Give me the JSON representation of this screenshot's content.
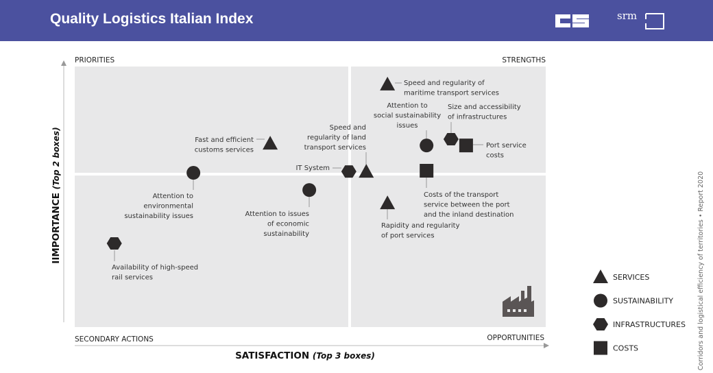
{
  "header": {
    "title": "Quality Logistics Italian Index",
    "logos": [
      "CS",
      "srm"
    ],
    "background_color": "#4b519f"
  },
  "side_note": "Corridors and logistical efficiency of territories • Report 2020",
  "chart_data": {
    "type": "scatter",
    "subtype": "quadrant",
    "xlabel_main": "SATISFACTION",
    "xlabel_sub": "(Top 3 boxes)",
    "ylabel_main": "IIMPORTANCE",
    "ylabel_sub": "(Top 2 boxes)",
    "xlim": [
      0,
      100
    ],
    "ylim": [
      0,
      100
    ],
    "quadrants": {
      "top_left": "PRIORITIES",
      "top_right": "STRENGTHS",
      "bottom_left": "SECONDARY ACTIONS",
      "bottom_right": "OPPORTUNITIES"
    },
    "quadrant_color": "#e8e8e9",
    "marker_color": "#2d2a2a",
    "legend": [
      {
        "category": "services",
        "label": "SERVICES",
        "shape": "triangle"
      },
      {
        "category": "sustainability",
        "label": "SUSTAINABILITY",
        "shape": "circle"
      },
      {
        "category": "infrastructures",
        "label": "INFRASTRUCTURES",
        "shape": "hexagon"
      },
      {
        "category": "costs",
        "label": "COSTS",
        "shape": "square"
      }
    ],
    "legend_position": "right",
    "points": [
      {
        "label": [
          "Speed and regularity of",
          "maritime transport services"
        ],
        "category": "services",
        "x": 66.4,
        "y": 93.2
      },
      {
        "label": [
          "Attention to",
          "social sustainability",
          "issues"
        ],
        "category": "sustainability",
        "x": 74.7,
        "y": 69.7
      },
      {
        "label": [
          "Size and accessibility",
          "of infrastructures"
        ],
        "category": "infrastructures",
        "x": 79.9,
        "y": 72.1
      },
      {
        "label": [
          "Port service",
          "costs"
        ],
        "category": "costs",
        "x": 83.1,
        "y": 69.7
      },
      {
        "label": [
          "Costs of the transport",
          "service between the port",
          "and the inland destination"
        ],
        "category": "costs",
        "x": 74.7,
        "y": 60.0
      },
      {
        "label": [
          "Rapidity and regularity",
          "of port services"
        ],
        "category": "services",
        "x": 66.4,
        "y": 47.6
      },
      {
        "label": [
          "Speed and",
          "regularity of land",
          "transport services"
        ],
        "category": "services",
        "x": 61.9,
        "y": 59.7
      },
      {
        "label": [
          "IT System"
        ],
        "category": "infrastructures",
        "x": 58.2,
        "y": 59.7
      },
      {
        "label": [
          "Attention to issues",
          "of economic",
          "sustainability"
        ],
        "category": "sustainability",
        "x": 49.8,
        "y": 52.6
      },
      {
        "label": [
          "Fast and efficient",
          "customs services"
        ],
        "category": "services",
        "x": 41.5,
        "y": 70.5
      },
      {
        "label": [
          "Attention to",
          "environmental",
          "sustainability issues"
        ],
        "category": "sustainability",
        "x": 25.2,
        "y": 59.2
      },
      {
        "label": [
          "Availability of high-speed",
          "rail services"
        ],
        "category": "infrastructures",
        "x": 8.4,
        "y": 32.1
      }
    ],
    "icons": [
      "factory-icon"
    ]
  }
}
